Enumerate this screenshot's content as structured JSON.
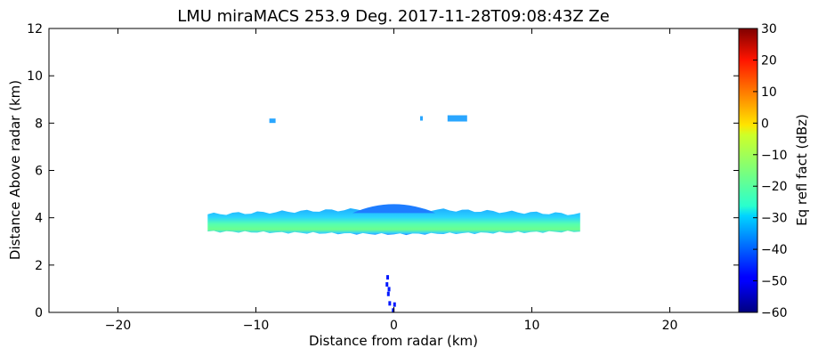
{
  "chart_data": {
    "type": "heatmap",
    "title": "LMU miraMACS 253.9 Deg. 2017-11-28T09:08:43Z  Ze",
    "xlabel": "Distance from radar (km)",
    "ylabel": "Distance Above radar  (km)",
    "xlim": [
      -25,
      25
    ],
    "ylim": [
      0,
      12
    ],
    "xticks": [
      -20,
      -10,
      0,
      10,
      20
    ],
    "yticks": [
      0,
      2,
      4,
      6,
      8,
      10,
      12
    ],
    "colorbar": {
      "label": "Eq refl fact (dBz)",
      "range": [
        -60,
        30
      ],
      "ticks": [
        -60,
        -50,
        -40,
        -30,
        -20,
        -10,
        0,
        10,
        20,
        30
      ],
      "colormap": "jet"
    },
    "grid": false,
    "features": [
      {
        "name": "main-cloud-layer",
        "x_range": [
          -13.5,
          13.5
        ],
        "base_km": 3.3,
        "top_km": 4.4,
        "dbz_range": [
          -40,
          -18
        ]
      },
      {
        "name": "cloud-upper-bulge",
        "x_range": [
          -3,
          3
        ],
        "base_km": 4.2,
        "top_km": 4.8,
        "dbz_range": [
          -40,
          -30
        ]
      },
      {
        "name": "high-patch-left",
        "x_km": -8.8,
        "y_km": 8.1,
        "dbz": -32
      },
      {
        "name": "high-patch-center",
        "x_km": 2.0,
        "y_km": 8.2,
        "dbz": -32
      },
      {
        "name": "high-patch-right",
        "x_km": 4.6,
        "y_km": 8.2,
        "dbz": -32
      },
      {
        "name": "near-ground-clutter",
        "x_range": [
          -0.5,
          0.1
        ],
        "y_range": [
          0,
          1.6
        ],
        "dbz": -45
      }
    ]
  }
}
